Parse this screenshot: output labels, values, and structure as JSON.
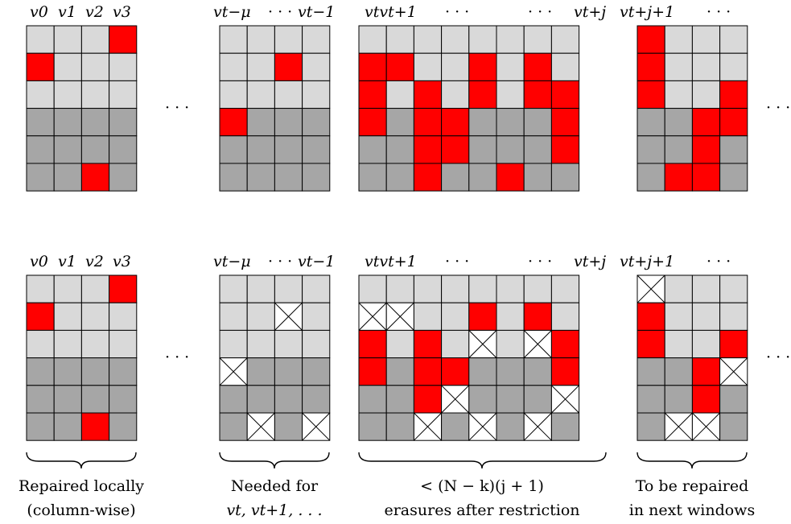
{
  "colors": {
    "light": "#d9d9d9",
    "dark": "#a6a6a6",
    "erased": "#ff0000",
    "repaired": "#ffffff",
    "grid": "#000000"
  },
  "legend_codes": {
    "L": "light cell",
    "D": "dark cell",
    "R": "erased cell (red)",
    "X": "repaired cell (white with cross)"
  },
  "headers": {
    "g1": [
      "v0",
      "v1",
      "v2",
      "v3"
    ],
    "g2": [
      "vt−μ",
      "· · ·",
      "vt−1"
    ],
    "g3": [
      "vtvt+1",
      "· · ·",
      "· · ·",
      "vt+j"
    ],
    "g4": [
      "vt+j+1",
      "· · ·"
    ]
  },
  "between_dots": "· · ·",
  "captions": {
    "g1": [
      "Repaired locally",
      "(column-wise)"
    ],
    "g2": [
      "Needed for",
      "vt, vt+1, . . ."
    ],
    "g3": [
      "< (N − k)(j + 1)",
      "erasures after restriction"
    ],
    "g4": [
      "To be repaired",
      "in next windows"
    ]
  },
  "panels": {
    "top": {
      "g1": [
        "LLLR",
        "RLLL",
        "LLLL",
        "DDDD",
        "DDDD",
        "DDRD"
      ],
      "g2": [
        "LLLL",
        "LLRL",
        "LLLL",
        "RDDD",
        "DDDD",
        "DDDD"
      ],
      "g3": [
        "LLLLLLLL",
        "RRLLRLRL",
        "RLRLRLRR",
        "RDRRDDDR",
        "DDRRDDDR",
        "DDRDDRDD"
      ],
      "g4": [
        "RLLL",
        "RLLL",
        "RLLR",
        "DDRR",
        "DDRD",
        "DRRD"
      ]
    },
    "bottom": {
      "g1": [
        "LLLR",
        "RLLL",
        "LLLL",
        "DDDD",
        "DDDD",
        "DDRD"
      ],
      "g2": [
        "LLLL",
        "LLXL",
        "LLLL",
        "XDDD",
        "DDDD",
        "DXDX"
      ],
      "g3": [
        "LLLLLLLL",
        "XXLLRLRL",
        "RLRLXLXR",
        "RDRRDDDR",
        "DDRXDDDX",
        "DDXDXDXD"
      ],
      "g4": [
        "XLLL",
        "RLLL",
        "RLLR",
        "DDRX",
        "DDRD",
        "DXXD"
      ]
    }
  }
}
